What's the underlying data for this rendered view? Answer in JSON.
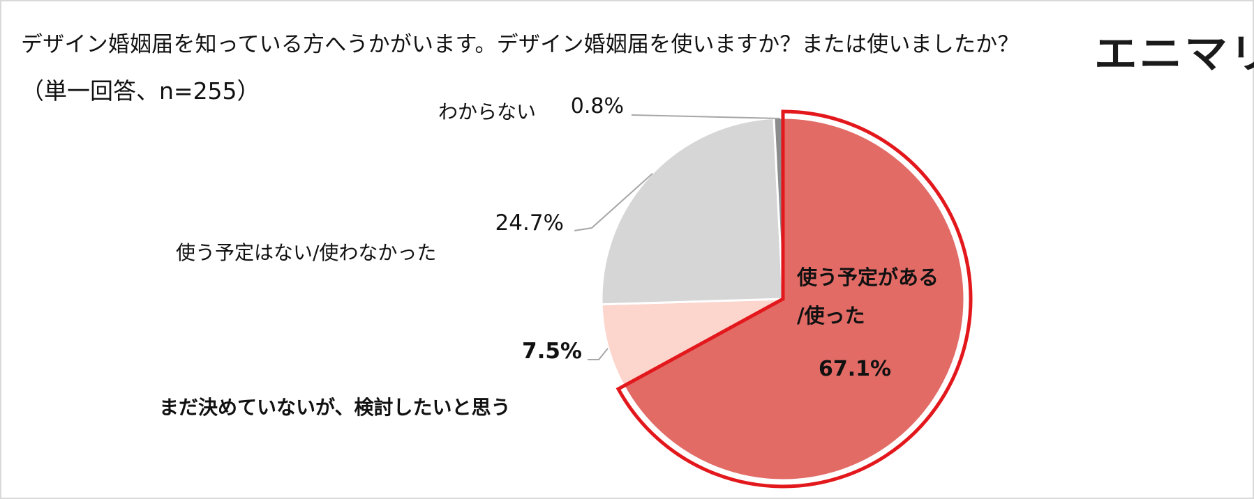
{
  "title": "デザイン婚姻届を知っている方へうかがいます。デザイン婚姻届を使いますか？または使いましたか？",
  "subtitle": "（単一回答、n=255）",
  "brand": "エニマリ",
  "chart_data": {
    "type": "pie",
    "start": "12 o'clock",
    "direction": "clockwise",
    "slices": [
      {
        "label_line1": "使う予定がある",
        "label_line2": "/使った",
        "value": 67.1,
        "value_text": "67.1%",
        "color": "#e26b66",
        "highlight": true
      },
      {
        "label_line1": "まだ決めていないが、検討したいと思う",
        "value": 7.5,
        "value_text": "7.5%",
        "color": "#fcd5cc"
      },
      {
        "label_line1": "使う予定はない/使わなかった",
        "value": 24.7,
        "value_text": "24.7%",
        "color": "#d6d6d6"
      },
      {
        "label_line1": "わからない",
        "value": 0.8,
        "value_text": "0.8%",
        "color": "#8c8c8c"
      }
    ],
    "highlight_color": "#e3181c",
    "leader_color": "#a6a6a6"
  }
}
